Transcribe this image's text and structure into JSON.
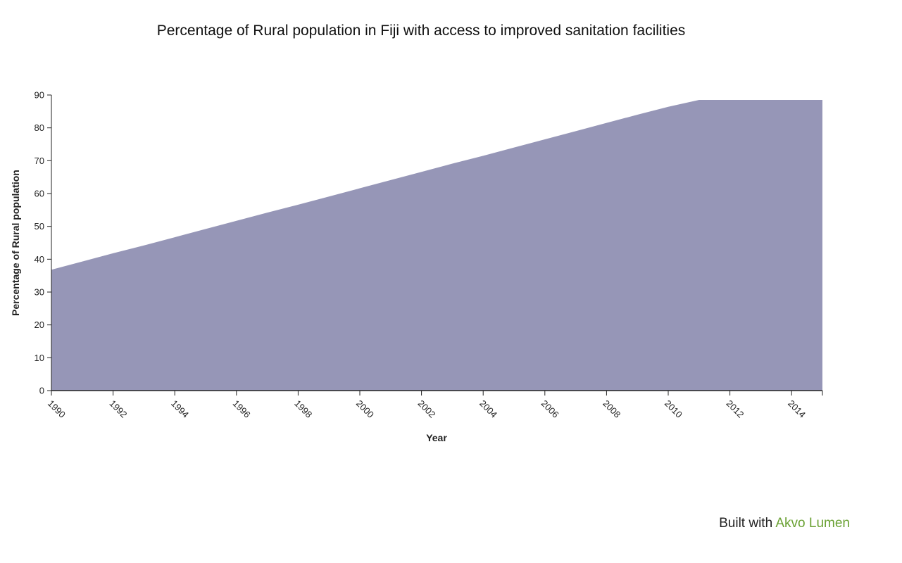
{
  "chart_data": {
    "type": "area",
    "title": "Percentage of Rural population in Fiji with access to improved sanitation facilities",
    "xlabel": "Year",
    "ylabel": "Percentage of Rural population",
    "x": [
      1990,
      1991,
      1992,
      1993,
      1994,
      1995,
      1996,
      1997,
      1998,
      1999,
      2000,
      2001,
      2002,
      2003,
      2004,
      2005,
      2006,
      2007,
      2008,
      2009,
      2010,
      2011,
      2012,
      2013,
      2014,
      2015
    ],
    "series": [
      {
        "values": [
          36.8,
          39.3,
          41.8,
          44.2,
          46.7,
          49.2,
          51.7,
          54.2,
          56.6,
          59.1,
          61.6,
          64.1,
          66.6,
          69.1,
          71.5,
          74.0,
          76.5,
          79.0,
          81.5,
          84.0,
          86.4,
          88.5,
          88.5,
          88.5,
          88.5,
          88.5
        ],
        "color": "#9696b7"
      }
    ],
    "xlim": [
      1990,
      2015
    ],
    "ylim": [
      0,
      90
    ],
    "x_ticks": [
      "1990",
      "1992",
      "1994",
      "1996",
      "1998",
      "2000",
      "2002",
      "2004",
      "2006",
      "2008",
      "2010",
      "2012",
      "2014"
    ],
    "y_ticks": [
      "0",
      "10",
      "20",
      "30",
      "40",
      "50",
      "60",
      "70",
      "80",
      "90"
    ],
    "grid": false,
    "legend": "none"
  },
  "footer": {
    "prefix": "Built with ",
    "link": "Akvo Lumen",
    "link_color": "#6aa133"
  }
}
